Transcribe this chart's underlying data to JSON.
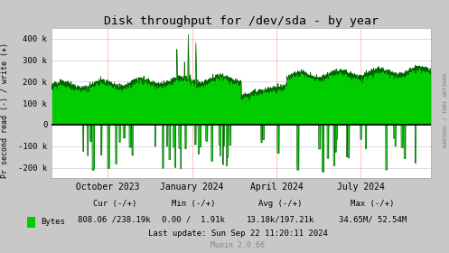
{
  "title": "Disk throughput for /dev/sda - by year",
  "ylabel_left": "Pr second read (-) / write (+)",
  "right_label": "RADTOOL / TOBI OETIKER",
  "bg_color": "#c8c8c8",
  "plot_bg_color": "#ffffff",
  "grid_color_h": "#cccccc",
  "grid_color_v": "#ffaaaa",
  "line_color_positive": "#00cc00",
  "line_color_dark": "#006600",
  "zero_line_color": "#000000",
  "ylim": [
    -250000,
    450000
  ],
  "yticks": [
    -200000,
    -100000,
    0,
    100000,
    200000,
    300000,
    400000
  ],
  "ytick_labels": [
    "-200 k",
    "-100 k",
    "0",
    "100 k",
    "200 k",
    "300 k",
    "400 k"
  ],
  "legend_label": "Bytes",
  "legend_color": "#00cc00",
  "cur_neg": "808.06",
  "cur_pos": "238.19k",
  "min_neg": "0.00",
  "min_pos": "1.91k",
  "avg_neg": "13.18k",
  "avg_pos": "197.21k",
  "max_neg": "34.65M",
  "max_pos": "52.54M",
  "last_update": "Last update: Sun Sep 22 11:20:11 2024",
  "munin_version": "Munin 2.0.66",
  "x_tick_labels": [
    "October 2023",
    "January 2024",
    "April 2024",
    "July 2024"
  ],
  "x_tick_positions": [
    0.148,
    0.37,
    0.593,
    0.815
  ],
  "figsize": [
    4.97,
    2.8
  ],
  "dpi": 100
}
